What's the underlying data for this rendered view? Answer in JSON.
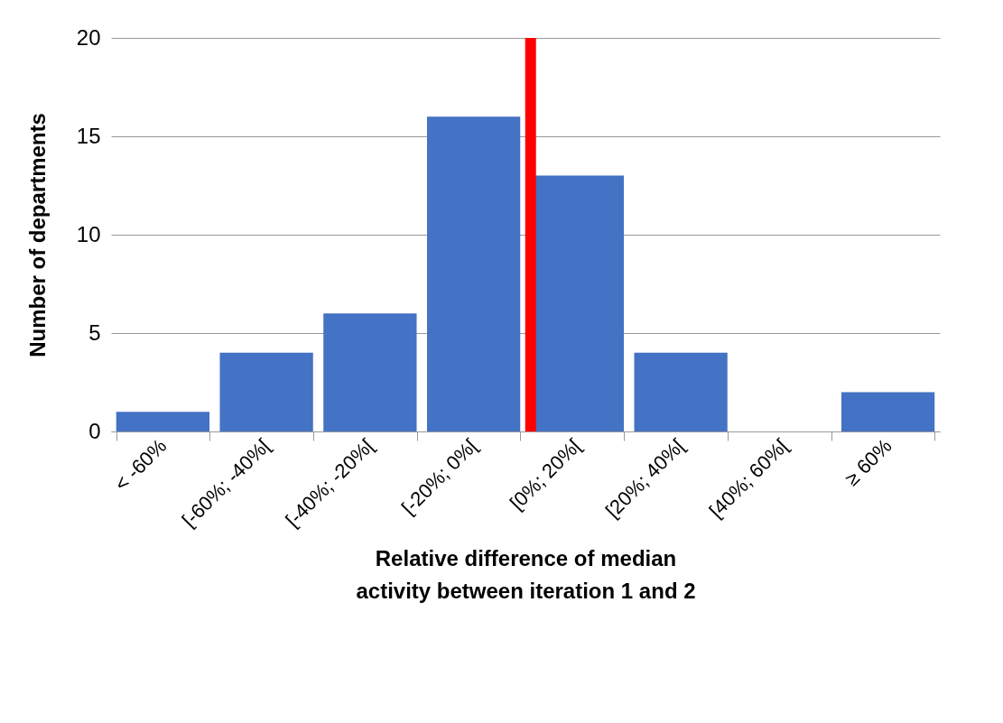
{
  "chart_data": {
    "type": "bar",
    "categories": [
      "< -60%",
      "[-60%; -40%[",
      "[-40%; -20%[",
      "[-20%; 0%[",
      "[0%; 20%[",
      "[20%; 40%[",
      "[40%; 60%[",
      "≥ 60%"
    ],
    "values": [
      1,
      4,
      6,
      16,
      13,
      4,
      0,
      2
    ],
    "color": "#4472c4",
    "xlabel": "Relative difference of median activity between iteration 1 and 2",
    "ylabel": "Number of departments",
    "ylim": [
      0,
      20
    ],
    "yticks": [
      0,
      5,
      10,
      15,
      20
    ],
    "grid": "y",
    "ref_lines": [
      {
        "axis": "x",
        "value": "[0%; 20%[",
        "color": "#ff0000"
      }
    ]
  }
}
